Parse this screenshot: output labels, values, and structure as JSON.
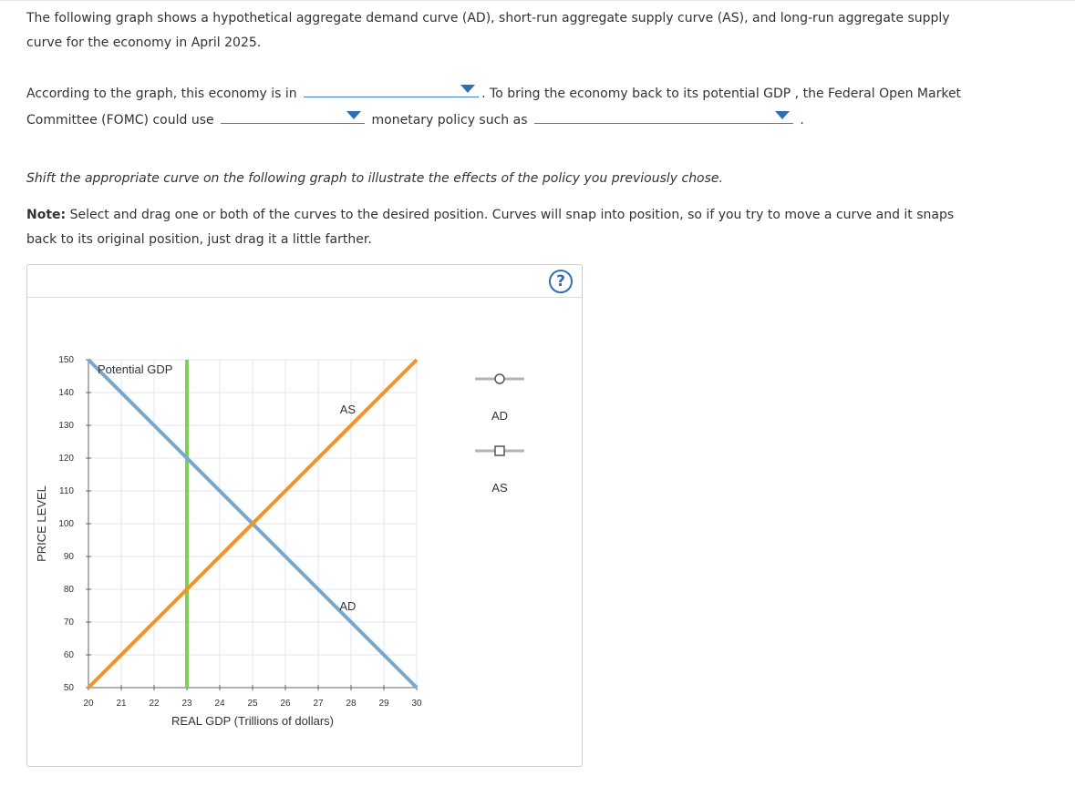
{
  "intro": {
    "text": "The following graph shows a hypothetical aggregate demand curve (AD), short-run aggregate supply curve (AS), and long-run aggregate supply curve for the economy in April 2025."
  },
  "question": {
    "part1": "According to the graph, this economy is in",
    "part2": ". To bring the economy back to its potential GDP , the Federal Open Market Committee (FOMC) could use",
    "part3": "monetary policy such as",
    "part4": ".",
    "dropdown1_value": "",
    "dropdown2_value": "",
    "dropdown3_value": ""
  },
  "instruction": {
    "shift_text": "Shift the appropriate curve on the following graph to illustrate the effects of the policy you previously chose.",
    "note_label": "Note:",
    "note_text": " Select and drag one or both of the curves to the desired position. Curves will snap into position, so if you try to move a curve and it snaps back to its original position, just drag it a little farther."
  },
  "panel": {
    "help_label": "?"
  },
  "colors": {
    "ad": "#7ba7cf",
    "as": "#f7941d",
    "lras": "#7ed05a",
    "grid": "#e6e6e6",
    "axis": "#666666",
    "legend_line": "#b3b3b3"
  },
  "legend": [
    {
      "label": "AD",
      "marker": "circle"
    },
    {
      "label": "AS",
      "marker": "square"
    }
  ],
  "chart_data": {
    "type": "line",
    "xlabel": "REAL GDP (Trillions of dollars)",
    "ylabel": "PRICE LEVEL",
    "xlim": [
      20,
      30
    ],
    "ylim": [
      50,
      150
    ],
    "x_ticks": [
      20,
      21,
      22,
      23,
      24,
      25,
      26,
      27,
      28,
      29,
      30
    ],
    "y_ticks": [
      50,
      60,
      70,
      80,
      90,
      100,
      110,
      120,
      130,
      140,
      150
    ],
    "grid": true,
    "series": [
      {
        "name": "AD",
        "x": [
          20,
          30
        ],
        "y": [
          150,
          50
        ]
      },
      {
        "name": "AS",
        "x": [
          20,
          30
        ],
        "y": [
          50,
          150
        ]
      }
    ],
    "vertical_lines": [
      {
        "name": "Potential GDP",
        "x": 23
      }
    ],
    "annotations": [
      {
        "text": "Potential GDP",
        "x": 23
      },
      {
        "text": "AS",
        "x": 27.9,
        "y": 135
      },
      {
        "text": "AD",
        "x": 27.9,
        "y": 75
      }
    ]
  }
}
